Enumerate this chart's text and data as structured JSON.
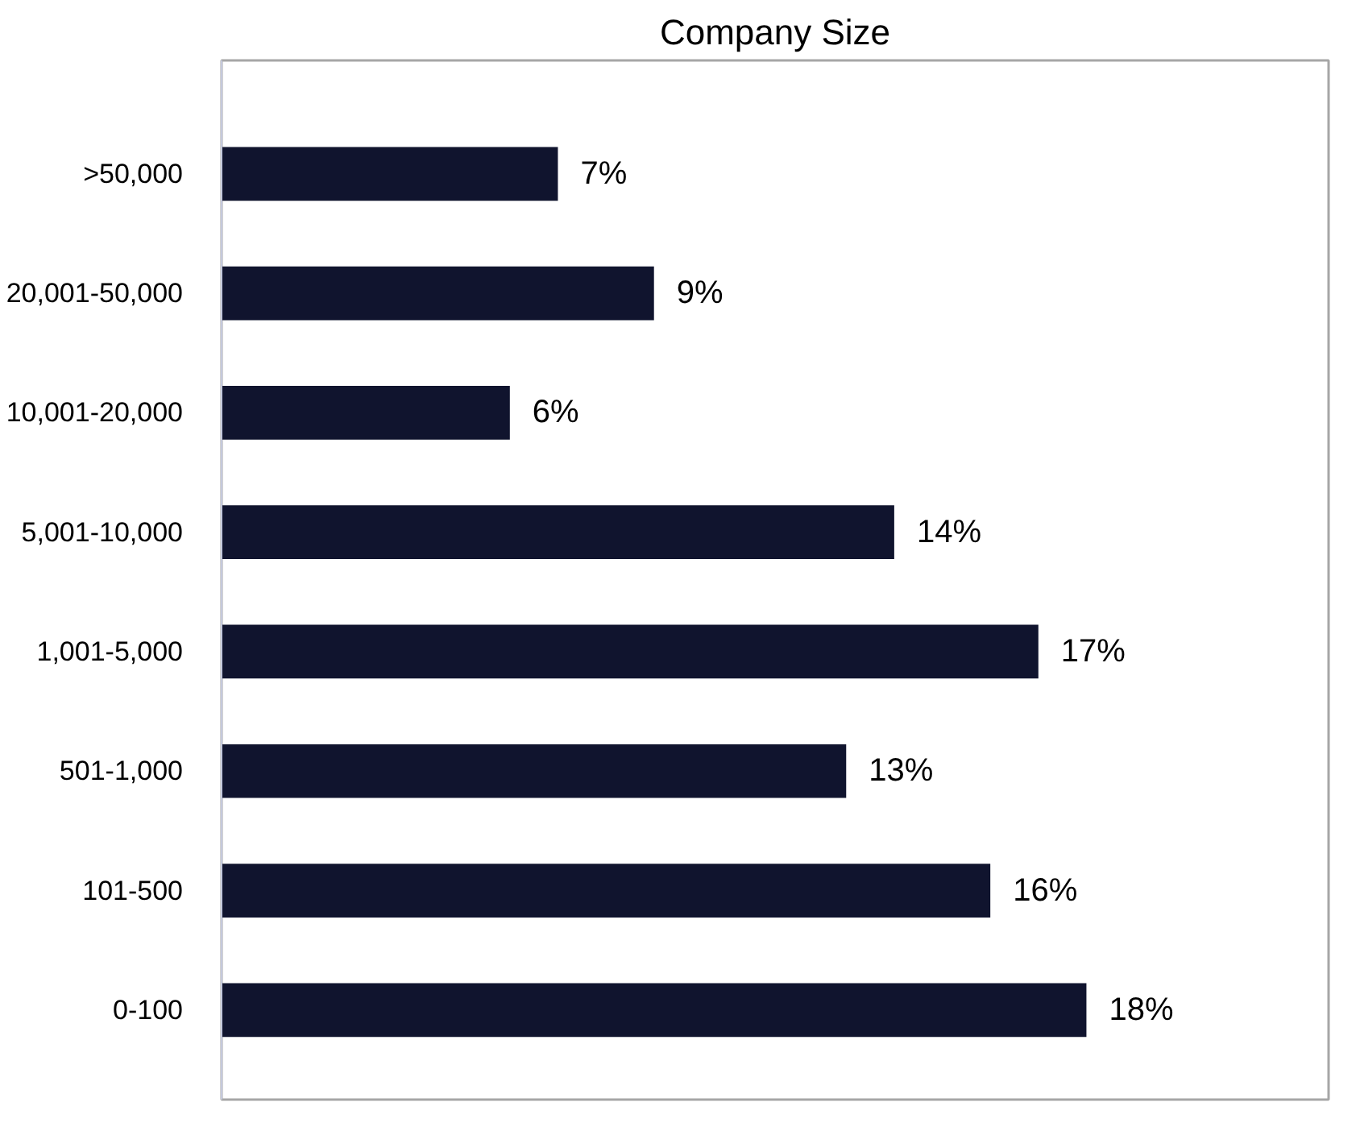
{
  "chart_data": {
    "type": "bar",
    "orientation": "horizontal",
    "title": "Company Size",
    "categories": [
      ">50,000",
      "20,001-50,000",
      "10,001-20,000",
      "5,001-10,000",
      "1,001-5,000",
      "501-1,000",
      "101-500",
      "0-100"
    ],
    "values": [
      7,
      9,
      6,
      14,
      17,
      13,
      16,
      18
    ],
    "value_labels": [
      "7%",
      "9%",
      "6%",
      "14%",
      "17%",
      "13%",
      "16%",
      "18%"
    ],
    "color": "#10142e",
    "grid": false
  }
}
